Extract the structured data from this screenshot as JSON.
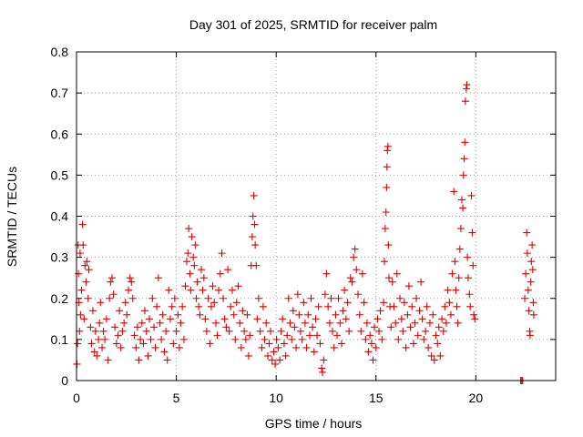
{
  "chart_data": {
    "type": "scatter",
    "title": "Day 301 of 2025, SRMTID for receiver palm",
    "xlabel": "GPS time / hours",
    "ylabel": "SRMTID / TECUs",
    "xlim": [
      0,
      24
    ],
    "ylim": [
      0,
      0.8
    ],
    "xticks": [
      0,
      5,
      10,
      15,
      20
    ],
    "xtick_labels": [
      "0",
      "5",
      "10",
      "15",
      "20"
    ],
    "yticks": [
      0,
      0.1,
      0.2,
      0.3,
      0.4,
      0.5,
      0.6,
      0.7,
      0.8
    ],
    "ytick_labels": [
      "0",
      "0.1",
      "0.2",
      "0.3",
      "0.4",
      "0.5",
      "0.6",
      "0.7",
      "0.8"
    ],
    "grid": true,
    "marker": "+",
    "color": "#e00000",
    "series": [
      {
        "name": "SRMTID",
        "points": [
          [
            0.02,
            0.04
          ],
          [
            0.05,
            0.09
          ],
          [
            0.08,
            0.33
          ],
          [
            0.1,
            0.26
          ],
          [
            0.12,
            0.19
          ],
          [
            0.15,
            0.12
          ],
          [
            0.18,
            0.31
          ],
          [
            0.2,
            0.16
          ],
          [
            0.25,
            0.22
          ],
          [
            0.3,
            0.38
          ],
          [
            0.33,
            0.33
          ],
          [
            0.38,
            0.15
          ],
          [
            0.42,
            0.28
          ],
          [
            0.48,
            0.24
          ],
          [
            0.52,
            0.29
          ],
          [
            0.58,
            0.2
          ],
          [
            0.62,
            0.27
          ],
          [
            0.7,
            0.13
          ],
          [
            0.75,
            0.09
          ],
          [
            0.82,
            0.17
          ],
          [
            0.9,
            0.07
          ],
          [
            0.95,
            0.12
          ],
          [
            1.02,
            0.06
          ],
          [
            1.1,
            0.1
          ],
          [
            1.15,
            0.14
          ],
          [
            1.2,
            0.19
          ],
          [
            1.28,
            0.08
          ],
          [
            1.35,
            0.12
          ],
          [
            1.42,
            0.1
          ],
          [
            1.5,
            0.15
          ],
          [
            1.58,
            0.05
          ],
          [
            1.65,
            0.2
          ],
          [
            1.7,
            0.24
          ],
          [
            1.78,
            0.25
          ],
          [
            1.85,
            0.21
          ],
          [
            1.92,
            0.13
          ],
          [
            2.0,
            0.09
          ],
          [
            2.08,
            0.11
          ],
          [
            2.15,
            0.17
          ],
          [
            2.22,
            0.08
          ],
          [
            2.3,
            0.12
          ],
          [
            2.38,
            0.14
          ],
          [
            2.45,
            0.19
          ],
          [
            2.52,
            0.16
          ],
          [
            2.6,
            0.22
          ],
          [
            2.68,
            0.25
          ],
          [
            2.75,
            0.24
          ],
          [
            2.82,
            0.2
          ],
          [
            2.9,
            0.11
          ],
          [
            2.98,
            0.08
          ],
          [
            3.05,
            0.13
          ],
          [
            3.12,
            0.05
          ],
          [
            3.2,
            0.1
          ],
          [
            3.28,
            0.14
          ],
          [
            3.35,
            0.09
          ],
          [
            3.42,
            0.17
          ],
          [
            3.5,
            0.12
          ],
          [
            3.58,
            0.06
          ],
          [
            3.65,
            0.15
          ],
          [
            3.72,
            0.1
          ],
          [
            3.8,
            0.2
          ],
          [
            3.88,
            0.13
          ],
          [
            3.95,
            0.08
          ],
          [
            4.02,
            0.18
          ],
          [
            4.1,
            0.25
          ],
          [
            4.18,
            0.14
          ],
          [
            4.25,
            0.1
          ],
          [
            4.32,
            0.16
          ],
          [
            4.4,
            0.07
          ],
          [
            4.48,
            0.12
          ],
          [
            4.55,
            0.05
          ],
          [
            4.62,
            0.22
          ],
          [
            4.7,
            0.15
          ],
          [
            4.78,
            0.18
          ],
          [
            4.85,
            0.09
          ],
          [
            4.92,
            0.2
          ],
          [
            5.0,
            0.12
          ],
          [
            5.08,
            0.16
          ],
          [
            5.15,
            0.08
          ],
          [
            5.22,
            0.14
          ],
          [
            5.3,
            0.18
          ],
          [
            5.38,
            0.1
          ],
          [
            5.45,
            0.23
          ],
          [
            5.52,
            0.29
          ],
          [
            5.58,
            0.31
          ],
          [
            5.62,
            0.37
          ],
          [
            5.68,
            0.26
          ],
          [
            5.72,
            0.22
          ],
          [
            5.78,
            0.35
          ],
          [
            5.85,
            0.3
          ],
          [
            5.9,
            0.28
          ],
          [
            5.95,
            0.33
          ],
          [
            6.0,
            0.2
          ],
          [
            6.05,
            0.24
          ],
          [
            6.12,
            0.18
          ],
          [
            6.18,
            0.16
          ],
          [
            6.25,
            0.27
          ],
          [
            6.32,
            0.22
          ],
          [
            6.38,
            0.25
          ],
          [
            6.45,
            0.15
          ],
          [
            6.52,
            0.12
          ],
          [
            6.6,
            0.2
          ],
          [
            6.68,
            0.09
          ],
          [
            6.75,
            0.18
          ],
          [
            6.82,
            0.23
          ],
          [
            6.9,
            0.19
          ],
          [
            6.98,
            0.14
          ],
          [
            7.05,
            0.11
          ],
          [
            7.12,
            0.22
          ],
          [
            7.2,
            0.26
          ],
          [
            7.28,
            0.31
          ],
          [
            7.35,
            0.2
          ],
          [
            7.42,
            0.15
          ],
          [
            7.5,
            0.13
          ],
          [
            7.58,
            0.27
          ],
          [
            7.65,
            0.12
          ],
          [
            7.72,
            0.18
          ],
          [
            7.8,
            0.22
          ],
          [
            7.88,
            0.16
          ],
          [
            7.95,
            0.1
          ],
          [
            8.02,
            0.19
          ],
          [
            8.1,
            0.23
          ],
          [
            8.18,
            0.14
          ],
          [
            8.25,
            0.08
          ],
          [
            8.32,
            0.17
          ],
          [
            8.4,
            0.12
          ],
          [
            8.48,
            0.1
          ],
          [
            8.55,
            0.16
          ],
          [
            8.62,
            0.06
          ],
          [
            8.68,
            0.11
          ],
          [
            8.75,
            0.28
          ],
          [
            8.8,
            0.35
          ],
          [
            8.84,
            0.4
          ],
          [
            8.88,
            0.45
          ],
          [
            8.92,
            0.38
          ],
          [
            8.95,
            0.33
          ],
          [
            9.0,
            0.28
          ],
          [
            9.05,
            0.15
          ],
          [
            9.12,
            0.2
          ],
          [
            9.2,
            0.12
          ],
          [
            9.28,
            0.08
          ],
          [
            9.35,
            0.18
          ],
          [
            9.42,
            0.1
          ],
          [
            9.5,
            0.14
          ],
          [
            9.58,
            0.06
          ],
          [
            9.65,
            0.09
          ],
          [
            9.72,
            0.12
          ],
          [
            9.8,
            0.05
          ],
          [
            9.88,
            0.07
          ],
          [
            9.95,
            0.04
          ],
          [
            10.02,
            0.1
          ],
          [
            10.1,
            0.08
          ],
          [
            10.18,
            0.05
          ],
          [
            10.25,
            0.12
          ],
          [
            10.32,
            0.15
          ],
          [
            10.4,
            0.09
          ],
          [
            10.48,
            0.06
          ],
          [
            10.55,
            0.11
          ],
          [
            10.62,
            0.2
          ],
          [
            10.7,
            0.14
          ],
          [
            10.78,
            0.1
          ],
          [
            10.85,
            0.17
          ],
          [
            10.92,
            0.13
          ],
          [
            11.0,
            0.08
          ],
          [
            11.08,
            0.21
          ],
          [
            11.15,
            0.16
          ],
          [
            11.22,
            0.12
          ],
          [
            11.3,
            0.1
          ],
          [
            11.38,
            0.19
          ],
          [
            11.45,
            0.14
          ],
          [
            11.52,
            0.08
          ],
          [
            11.6,
            0.16
          ],
          [
            11.68,
            0.11
          ],
          [
            11.75,
            0.2
          ],
          [
            11.82,
            0.13
          ],
          [
            11.9,
            0.07
          ],
          [
            11.98,
            0.15
          ],
          [
            12.05,
            0.11
          ],
          [
            12.12,
            0.18
          ],
          [
            12.2,
            0.09
          ],
          [
            12.28,
            0.03
          ],
          [
            12.32,
            0.02
          ],
          [
            12.38,
            0.05
          ],
          [
            12.45,
            0.21
          ],
          [
            12.52,
            0.26
          ],
          [
            12.6,
            0.18
          ],
          [
            12.68,
            0.14
          ],
          [
            12.75,
            0.2
          ],
          [
            12.82,
            0.12
          ],
          [
            12.9,
            0.08
          ],
          [
            12.98,
            0.16
          ],
          [
            13.05,
            0.11
          ],
          [
            13.12,
            0.2
          ],
          [
            13.2,
            0.14
          ],
          [
            13.28,
            0.09
          ],
          [
            13.35,
            0.17
          ],
          [
            13.42,
            0.22
          ],
          [
            13.5,
            0.15
          ],
          [
            13.58,
            0.19
          ],
          [
            13.65,
            0.12
          ],
          [
            13.72,
            0.25
          ],
          [
            13.8,
            0.24
          ],
          [
            13.88,
            0.3
          ],
          [
            13.95,
            0.32
          ],
          [
            14.02,
            0.27
          ],
          [
            14.1,
            0.21
          ],
          [
            14.18,
            0.16
          ],
          [
            14.25,
            0.12
          ],
          [
            14.32,
            0.26
          ],
          [
            14.4,
            0.19
          ],
          [
            14.48,
            0.1
          ],
          [
            14.55,
            0.14
          ],
          [
            14.62,
            0.07
          ],
          [
            14.7,
            0.11
          ],
          [
            14.78,
            0.09
          ],
          [
            14.85,
            0.05
          ],
          [
            14.92,
            0.13
          ],
          [
            15.0,
            0.08
          ],
          [
            15.08,
            0.15
          ],
          [
            15.15,
            0.12
          ],
          [
            15.22,
            0.17
          ],
          [
            15.3,
            0.1
          ],
          [
            15.38,
            0.19
          ],
          [
            15.42,
            0.29
          ],
          [
            15.46,
            0.37
          ],
          [
            15.5,
            0.41
          ],
          [
            15.53,
            0.47
          ],
          [
            15.55,
            0.52
          ],
          [
            15.57,
            0.56
          ],
          [
            15.6,
            0.57
          ],
          [
            15.62,
            0.33
          ],
          [
            15.65,
            0.25
          ],
          [
            15.7,
            0.18
          ],
          [
            15.75,
            0.13
          ],
          [
            15.82,
            0.24
          ],
          [
            15.9,
            0.18
          ],
          [
            15.98,
            0.14
          ],
          [
            16.05,
            0.26
          ],
          [
            16.12,
            0.1
          ],
          [
            16.2,
            0.2
          ],
          [
            16.28,
            0.15
          ],
          [
            16.35,
            0.12
          ],
          [
            16.42,
            0.19
          ],
          [
            16.5,
            0.08
          ],
          [
            16.58,
            0.16
          ],
          [
            16.65,
            0.23
          ],
          [
            16.72,
            0.13
          ],
          [
            16.8,
            0.18
          ],
          [
            16.88,
            0.09
          ],
          [
            16.95,
            0.14
          ],
          [
            17.02,
            0.2
          ],
          [
            17.1,
            0.11
          ],
          [
            17.18,
            0.17
          ],
          [
            17.25,
            0.24
          ],
          [
            17.32,
            0.15
          ],
          [
            17.4,
            0.1
          ],
          [
            17.48,
            0.12
          ],
          [
            17.55,
            0.18
          ],
          [
            17.62,
            0.08
          ],
          [
            17.7,
            0.14
          ],
          [
            17.78,
            0.06
          ],
          [
            17.85,
            0.16
          ],
          [
            17.92,
            0.05
          ],
          [
            18.0,
            0.11
          ],
          [
            18.08,
            0.09
          ],
          [
            18.15,
            0.13
          ],
          [
            18.22,
            0.06
          ],
          [
            18.3,
            0.15
          ],
          [
            18.38,
            0.12
          ],
          [
            18.45,
            0.18
          ],
          [
            18.52,
            0.14
          ],
          [
            18.6,
            0.22
          ],
          [
            18.68,
            0.19
          ],
          [
            18.75,
            0.16
          ],
          [
            18.82,
            0.26
          ],
          [
            18.9,
            0.46
          ],
          [
            18.95,
            0.29
          ],
          [
            19.0,
            0.22
          ],
          [
            19.05,
            0.18
          ],
          [
            19.1,
            0.14
          ],
          [
            19.15,
            0.25
          ],
          [
            19.2,
            0.32
          ],
          [
            19.25,
            0.37
          ],
          [
            19.3,
            0.44
          ],
          [
            19.35,
            0.42
          ],
          [
            19.38,
            0.5
          ],
          [
            19.42,
            0.54
          ],
          [
            19.45,
            0.58
          ],
          [
            19.48,
            0.68
          ],
          [
            19.52,
            0.71
          ],
          [
            19.55,
            0.72
          ],
          [
            19.58,
            0.3
          ],
          [
            19.62,
            0.25
          ],
          [
            19.68,
            0.21
          ],
          [
            19.72,
            0.18
          ],
          [
            19.78,
            0.45
          ],
          [
            19.82,
            0.36
          ],
          [
            19.86,
            0.28
          ],
          [
            19.9,
            0.16
          ],
          [
            19.95,
            0.15
          ],
          [
            22.25,
            0.0
          ],
          [
            22.3,
            0.0
          ],
          [
            22.35,
            0.0
          ],
          [
            22.45,
            0.2
          ],
          [
            22.5,
            0.26
          ],
          [
            22.55,
            0.36
          ],
          [
            22.58,
            0.31
          ],
          [
            22.62,
            0.22
          ],
          [
            22.66,
            0.17
          ],
          [
            22.7,
            0.12
          ],
          [
            22.72,
            0.11
          ],
          [
            22.75,
            0.24
          ],
          [
            22.78,
            0.29
          ],
          [
            22.82,
            0.33
          ],
          [
            22.85,
            0.27
          ],
          [
            22.88,
            0.19
          ],
          [
            22.9,
            0.16
          ]
        ]
      }
    ]
  }
}
